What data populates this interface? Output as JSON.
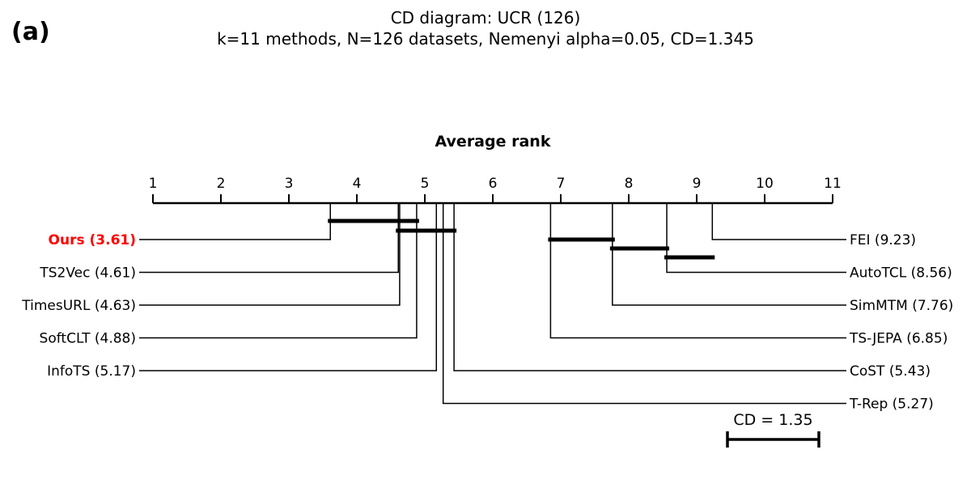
{
  "panel_label": "(a)",
  "chart_data": {
    "type": "critical-difference-diagram",
    "title": "CD diagram: UCR (126)",
    "subtitle": "k=11 methods, N=126 datasets, Nemenyi alpha=0.05, CD=1.345",
    "axis_label": "Average rank",
    "axis_range": [
      1,
      11
    ],
    "ticks": [
      1,
      2,
      3,
      4,
      5,
      6,
      7,
      8,
      9,
      10,
      11
    ],
    "cd": 1.345,
    "cd_label": "CD = 1.35",
    "methods": [
      {
        "label": "Ours (3.61)",
        "rank": 3.61,
        "side": "left",
        "highlight": true
      },
      {
        "label": "TS2Vec (4.61)",
        "rank": 4.61,
        "side": "left"
      },
      {
        "label": "TimesURL (4.63)",
        "rank": 4.63,
        "side": "left"
      },
      {
        "label": "SoftCLT (4.88)",
        "rank": 4.88,
        "side": "left"
      },
      {
        "label": "InfoTS (5.17)",
        "rank": 5.17,
        "side": "left"
      },
      {
        "label": "FEI (9.23)",
        "rank": 9.23,
        "side": "right"
      },
      {
        "label": "AutoTCL (8.56)",
        "rank": 8.56,
        "side": "right"
      },
      {
        "label": "SimMTM (7.76)",
        "rank": 7.76,
        "side": "right"
      },
      {
        "label": "TS-JEPA (6.85)",
        "rank": 6.85,
        "side": "right"
      },
      {
        "label": "CoST (5.43)",
        "rank": 5.43,
        "side": "right"
      },
      {
        "label": "T-Rep (5.27)",
        "rank": 5.27,
        "side": "right"
      }
    ],
    "cliques": [
      [
        3.61,
        4.88
      ],
      [
        4.61,
        5.43
      ],
      [
        6.85,
        7.76
      ],
      [
        7.76,
        8.56
      ],
      [
        8.56,
        9.23
      ]
    ],
    "colors": {
      "line": "#000000",
      "highlight": "#ff0000"
    }
  }
}
